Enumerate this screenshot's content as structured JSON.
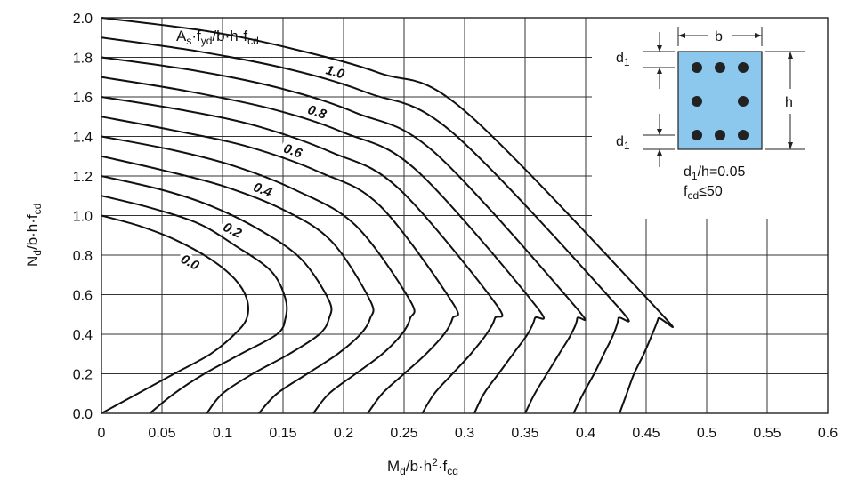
{
  "chart_data": {
    "type": "line",
    "xlabel": "M_d/b·h²·f_cd",
    "ylabel": "N_d/b·h·f_cd",
    "xlim": [
      0,
      0.6
    ],
    "ylim": [
      0,
      2.0
    ],
    "x_ticks": [
      "0",
      "0.05",
      "0.1",
      "0.15",
      "0.2",
      "0.25",
      "0.3",
      "0.35",
      "0.4",
      "0.45",
      "0.5",
      "0.55",
      "0.6"
    ],
    "y_ticks": [
      "0.0",
      "0.2",
      "0.4",
      "0.6",
      "0.8",
      "1.0",
      "1.2",
      "1.4",
      "1.6",
      "1.8",
      "2.0"
    ],
    "grid": true,
    "curves_label": "A_s·f_yd/b·h·f_cd",
    "series": [
      {
        "name": "0.0",
        "points": [
          [
            0,
            1.0
          ],
          [
            0.03,
            0.95
          ],
          [
            0.06,
            0.88
          ],
          [
            0.09,
            0.78
          ],
          [
            0.11,
            0.68
          ],
          [
            0.12,
            0.58
          ],
          [
            0.12,
            0.48
          ],
          [
            0.11,
            0.4
          ],
          [
            0.09,
            0.3
          ],
          [
            0.06,
            0.2
          ],
          [
            0.03,
            0.1
          ],
          [
            0,
            0
          ]
        ]
      },
      {
        "name": "",
        "points": [
          [
            0,
            1.1
          ],
          [
            0.04,
            1.04
          ],
          [
            0.08,
            0.96
          ],
          [
            0.11,
            0.85
          ],
          [
            0.14,
            0.72
          ],
          [
            0.152,
            0.58
          ],
          [
            0.152,
            0.48
          ],
          [
            0.145,
            0.4
          ],
          [
            0.115,
            0.3
          ],
          [
            0.085,
            0.2
          ],
          [
            0.06,
            0.1
          ],
          [
            0.04,
            0
          ]
        ]
      },
      {
        "name": "0.2",
        "points": [
          [
            0,
            1.2
          ],
          [
            0.05,
            1.13
          ],
          [
            0.09,
            1.05
          ],
          [
            0.13,
            0.93
          ],
          [
            0.165,
            0.78
          ],
          [
            0.188,
            0.57
          ],
          [
            0.188,
            0.48
          ],
          [
            0.18,
            0.4
          ],
          [
            0.155,
            0.3
          ],
          [
            0.125,
            0.2
          ],
          [
            0.1,
            0.1
          ],
          [
            0.087,
            0
          ]
        ]
      },
      {
        "name": "",
        "points": [
          [
            0,
            1.3
          ],
          [
            0.05,
            1.23
          ],
          [
            0.1,
            1.15
          ],
          [
            0.15,
            1.03
          ],
          [
            0.19,
            0.87
          ],
          [
            0.222,
            0.57
          ],
          [
            0.222,
            0.48
          ],
          [
            0.214,
            0.4
          ],
          [
            0.195,
            0.3
          ],
          [
            0.17,
            0.2
          ],
          [
            0.145,
            0.1
          ],
          [
            0.13,
            0
          ]
        ]
      },
      {
        "name": "0.4",
        "points": [
          [
            0,
            1.4
          ],
          [
            0.06,
            1.33
          ],
          [
            0.11,
            1.25
          ],
          [
            0.16,
            1.13
          ],
          [
            0.21,
            0.95
          ],
          [
            0.255,
            0.57
          ],
          [
            0.255,
            0.48
          ],
          [
            0.248,
            0.4
          ],
          [
            0.232,
            0.3
          ],
          [
            0.21,
            0.2
          ],
          [
            0.188,
            0.1
          ],
          [
            0.175,
            0
          ]
        ]
      },
      {
        "name": "",
        "points": [
          [
            0,
            1.5
          ],
          [
            0.06,
            1.43
          ],
          [
            0.12,
            1.35
          ],
          [
            0.18,
            1.22
          ],
          [
            0.23,
            1.05
          ],
          [
            0.29,
            0.56
          ],
          [
            0.29,
            0.48
          ],
          [
            0.283,
            0.4
          ],
          [
            0.268,
            0.3
          ],
          [
            0.25,
            0.2
          ],
          [
            0.232,
            0.1
          ],
          [
            0.22,
            0
          ]
        ]
      },
      {
        "name": "0.6",
        "points": [
          [
            0,
            1.6
          ],
          [
            0.07,
            1.53
          ],
          [
            0.13,
            1.45
          ],
          [
            0.19,
            1.32
          ],
          [
            0.245,
            1.14
          ],
          [
            0.325,
            0.56
          ],
          [
            0.325,
            0.48
          ],
          [
            0.318,
            0.4
          ],
          [
            0.305,
            0.3
          ],
          [
            0.29,
            0.2
          ],
          [
            0.275,
            0.1
          ],
          [
            0.265,
            0
          ]
        ]
      },
      {
        "name": "",
        "points": [
          [
            0,
            1.7
          ],
          [
            0.07,
            1.63
          ],
          [
            0.14,
            1.54
          ],
          [
            0.2,
            1.42
          ],
          [
            0.26,
            1.23
          ],
          [
            0.358,
            0.55
          ],
          [
            0.358,
            0.48
          ],
          [
            0.352,
            0.4
          ],
          [
            0.34,
            0.3
          ],
          [
            0.328,
            0.2
          ],
          [
            0.316,
            0.1
          ],
          [
            0.308,
            0
          ]
        ]
      },
      {
        "name": "0.8",
        "points": [
          [
            0,
            1.8
          ],
          [
            0.08,
            1.73
          ],
          [
            0.15,
            1.64
          ],
          [
            0.21,
            1.52
          ],
          [
            0.275,
            1.32
          ],
          [
            0.39,
            0.55
          ],
          [
            0.393,
            0.48
          ],
          [
            0.388,
            0.4
          ],
          [
            0.378,
            0.3
          ],
          [
            0.368,
            0.2
          ],
          [
            0.358,
            0.1
          ],
          [
            0.35,
            0
          ]
        ]
      },
      {
        "name": "",
        "points": [
          [
            0,
            1.9
          ],
          [
            0.08,
            1.83
          ],
          [
            0.155,
            1.74
          ],
          [
            0.22,
            1.62
          ],
          [
            0.29,
            1.42
          ],
          [
            0.425,
            0.55
          ],
          [
            0.427,
            0.48
          ],
          [
            0.423,
            0.4
          ],
          [
            0.415,
            0.3
          ],
          [
            0.407,
            0.2
          ],
          [
            0.398,
            0.1
          ],
          [
            0.39,
            0
          ]
        ]
      },
      {
        "name": "1.0",
        "points": [
          [
            0,
            2.0
          ],
          [
            0.09,
            1.93
          ],
          [
            0.16,
            1.84
          ],
          [
            0.23,
            1.72
          ],
          [
            0.3,
            1.53
          ],
          [
            0.46,
            0.52
          ],
          [
            0.46,
            0.48
          ],
          [
            0.455,
            0.4
          ],
          [
            0.448,
            0.3
          ],
          [
            0.44,
            0.2
          ],
          [
            0.434,
            0.1
          ],
          [
            0.428,
            0
          ]
        ]
      }
    ]
  },
  "inset": {
    "b": "b",
    "h": "h",
    "d1_top": "d",
    "d1_top_sub": "1",
    "d1_bottom": "d",
    "d1_bottom_sub": "1",
    "note1_a": "d",
    "note1_sub": "1",
    "note1_b": "/h=0.05",
    "note2_a": "f",
    "note2_sub": "cd",
    "note2_b": "≤50"
  }
}
